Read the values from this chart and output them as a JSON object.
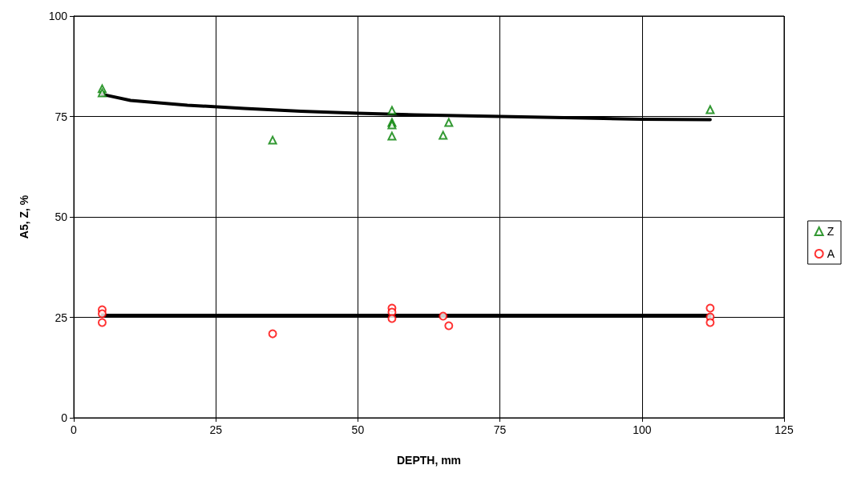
{
  "chart_data": {
    "type": "scatter",
    "xlabel": "DEPTH, mm",
    "ylabel": "A5, Z, %",
    "xlim": [
      0,
      125
    ],
    "xticks": [
      0,
      25,
      50,
      75,
      100,
      125
    ],
    "ylim": [
      0,
      100
    ],
    "yticks": [
      0,
      25,
      50,
      75,
      100
    ],
    "grid": true,
    "legend": "right",
    "series": [
      {
        "name": "Z",
        "color": "#008000",
        "marker": "triangle",
        "x": [
          5,
          5,
          35,
          56,
          56,
          56,
          56,
          65,
          66,
          112
        ],
        "values": [
          81.9,
          80.9,
          69.1,
          76.5,
          73.5,
          72.9,
          70.1,
          70.3,
          73.5,
          76.7
        ]
      },
      {
        "name": "A",
        "color": "#ff0000",
        "marker": "circle",
        "x": [
          5,
          5,
          5,
          35,
          56,
          56,
          56,
          65,
          66,
          112,
          112,
          112
        ],
        "values": [
          26.9,
          25.9,
          23.7,
          20.9,
          27.3,
          26.3,
          24.7,
          25.3,
          22.9,
          27.3,
          25.1,
          23.7
        ]
      },
      {
        "type": "line",
        "color": "#000000",
        "marker": "none",
        "x": [
          5,
          10,
          20,
          30,
          40,
          50,
          60,
          75,
          90,
          100,
          112
        ],
        "values": [
          80.5,
          79,
          77.8,
          77,
          76.3,
          75.8,
          75.4,
          75,
          74.6,
          74.3,
          74.2
        ]
      },
      {
        "type": "line",
        "color": "#000000",
        "marker": "none",
        "x": [
          5,
          112
        ],
        "values": [
          25.5,
          25.5
        ]
      }
    ]
  }
}
